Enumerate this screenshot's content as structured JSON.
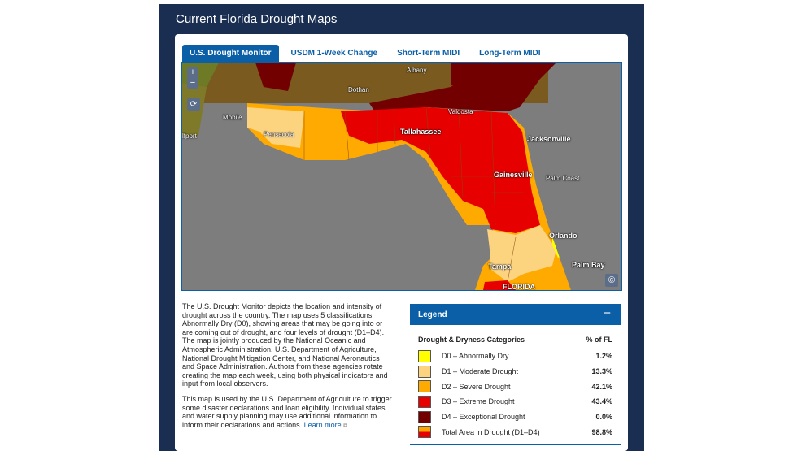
{
  "panel": {
    "title": "Current Florida Drought Maps"
  },
  "tabs": [
    {
      "label": "U.S. Drought Monitor",
      "active": true
    },
    {
      "label": "USDM 1-Week Change",
      "active": false
    },
    {
      "label": "Short-Term MIDI",
      "active": false
    },
    {
      "label": "Long-Term MIDI",
      "active": false
    }
  ],
  "map": {
    "zoom_in": "+",
    "zoom_out": "−",
    "copyright": "©",
    "places": {
      "albany": "Albany",
      "dothan": "Dothan",
      "valdosta": "Valdosta",
      "mobile": "Mobile",
      "pensacola": "Pensacola",
      "tallahassee": "Tallahassee",
      "jacksonville": "Jacksonville",
      "gainesville": "Gainesville",
      "palm_coast": "Palm Coast",
      "orlando": "Orlando",
      "tampa": "Tampa",
      "palm_bay": "Palm Bay",
      "florida": "FLORIDA",
      "gulfport": "lfport"
    }
  },
  "description": {
    "p1": "The U.S. Drought Monitor depicts the location and intensity of drought across the country. The map uses 5 classifications: Abnormally Dry (D0), showing areas that may be going into or are coming out of drought, and four levels of drought (D1–D4). The map is jointly produced by the National Oceanic and Atmospheric Administration,  U.S. Department of Agriculture, National Drought Mitigation Center, and National Aeronautics and Space Administration. Authors from these agencies rotate creating the map each week, using both physical indicators and  input from local observers.",
    "p2": "This map is used by the U.S. Department of Agriculture to trigger some disaster declarations and loan eligibility. Individual states and water supply planning may use additional information to inform their declarations and actions.",
    "link": "Learn more",
    "link_icon": "⧉",
    "tail": " ."
  },
  "legend": {
    "title": "Legend",
    "collapse": "−",
    "col_category": "Drought & Dryness Categories",
    "col_pct": "% of FL",
    "rows": [
      {
        "label": "D0 – Abnormally Dry",
        "pct": "1.2%",
        "color": "#ffff00"
      },
      {
        "label": "D1 – Moderate Drought",
        "pct": "13.3%",
        "color": "#fcd37f"
      },
      {
        "label": "D2 – Severe Drought",
        "pct": "42.1%",
        "color": "#ffaa00"
      },
      {
        "label": "D3 – Extreme Drought",
        "pct": "43.4%",
        "color": "#e60000"
      },
      {
        "label": "D4 – Exceptional Drought",
        "pct": "0.0%",
        "color": "#730000"
      }
    ],
    "total": {
      "label": "Total Area in Drought (D1–D4)",
      "pct": "98.8%"
    }
  }
}
